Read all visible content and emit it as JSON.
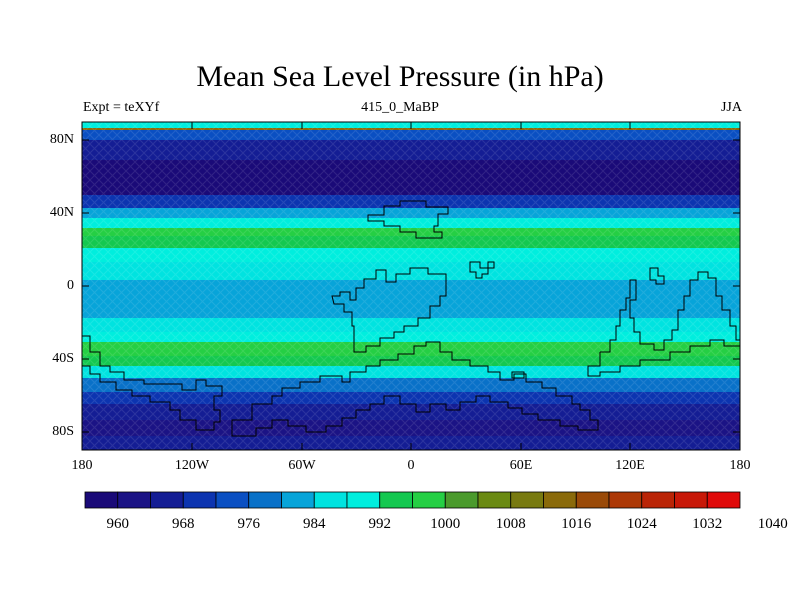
{
  "title": "Mean Sea Level Pressure (in hPa)",
  "left_string": "Expt = teXYf",
  "center_string": "415_0_MaBP",
  "right_string": "JJA",
  "lat_labels": [
    "80N",
    "40N",
    "0",
    "40S",
    "80S"
  ],
  "lon_labels": [
    "180",
    "120W",
    "60W",
    "0",
    "60E",
    "120E",
    "180"
  ],
  "colorbar_labels": [
    "960",
    "968",
    "976",
    "984",
    "992",
    "1000",
    "1008",
    "1016",
    "1024",
    "1032",
    "1040"
  ],
  "colors": {
    "levels": [
      "#1a0a78",
      "#1b1385",
      "#141d94",
      "#0c34b0",
      "#0a4fc2",
      "#0971c8",
      "#07a4d9",
      "#00e3e0",
      "#00eede",
      "#14c850",
      "#25cf44",
      "#4a9a2c",
      "#6a8a12",
      "#787a10",
      "#8a6a0a",
      "#9a4a08",
      "#ac3806",
      "#ba2406",
      "#c81808",
      "#e00a0a"
    ],
    "coast": "#000000"
  }
}
